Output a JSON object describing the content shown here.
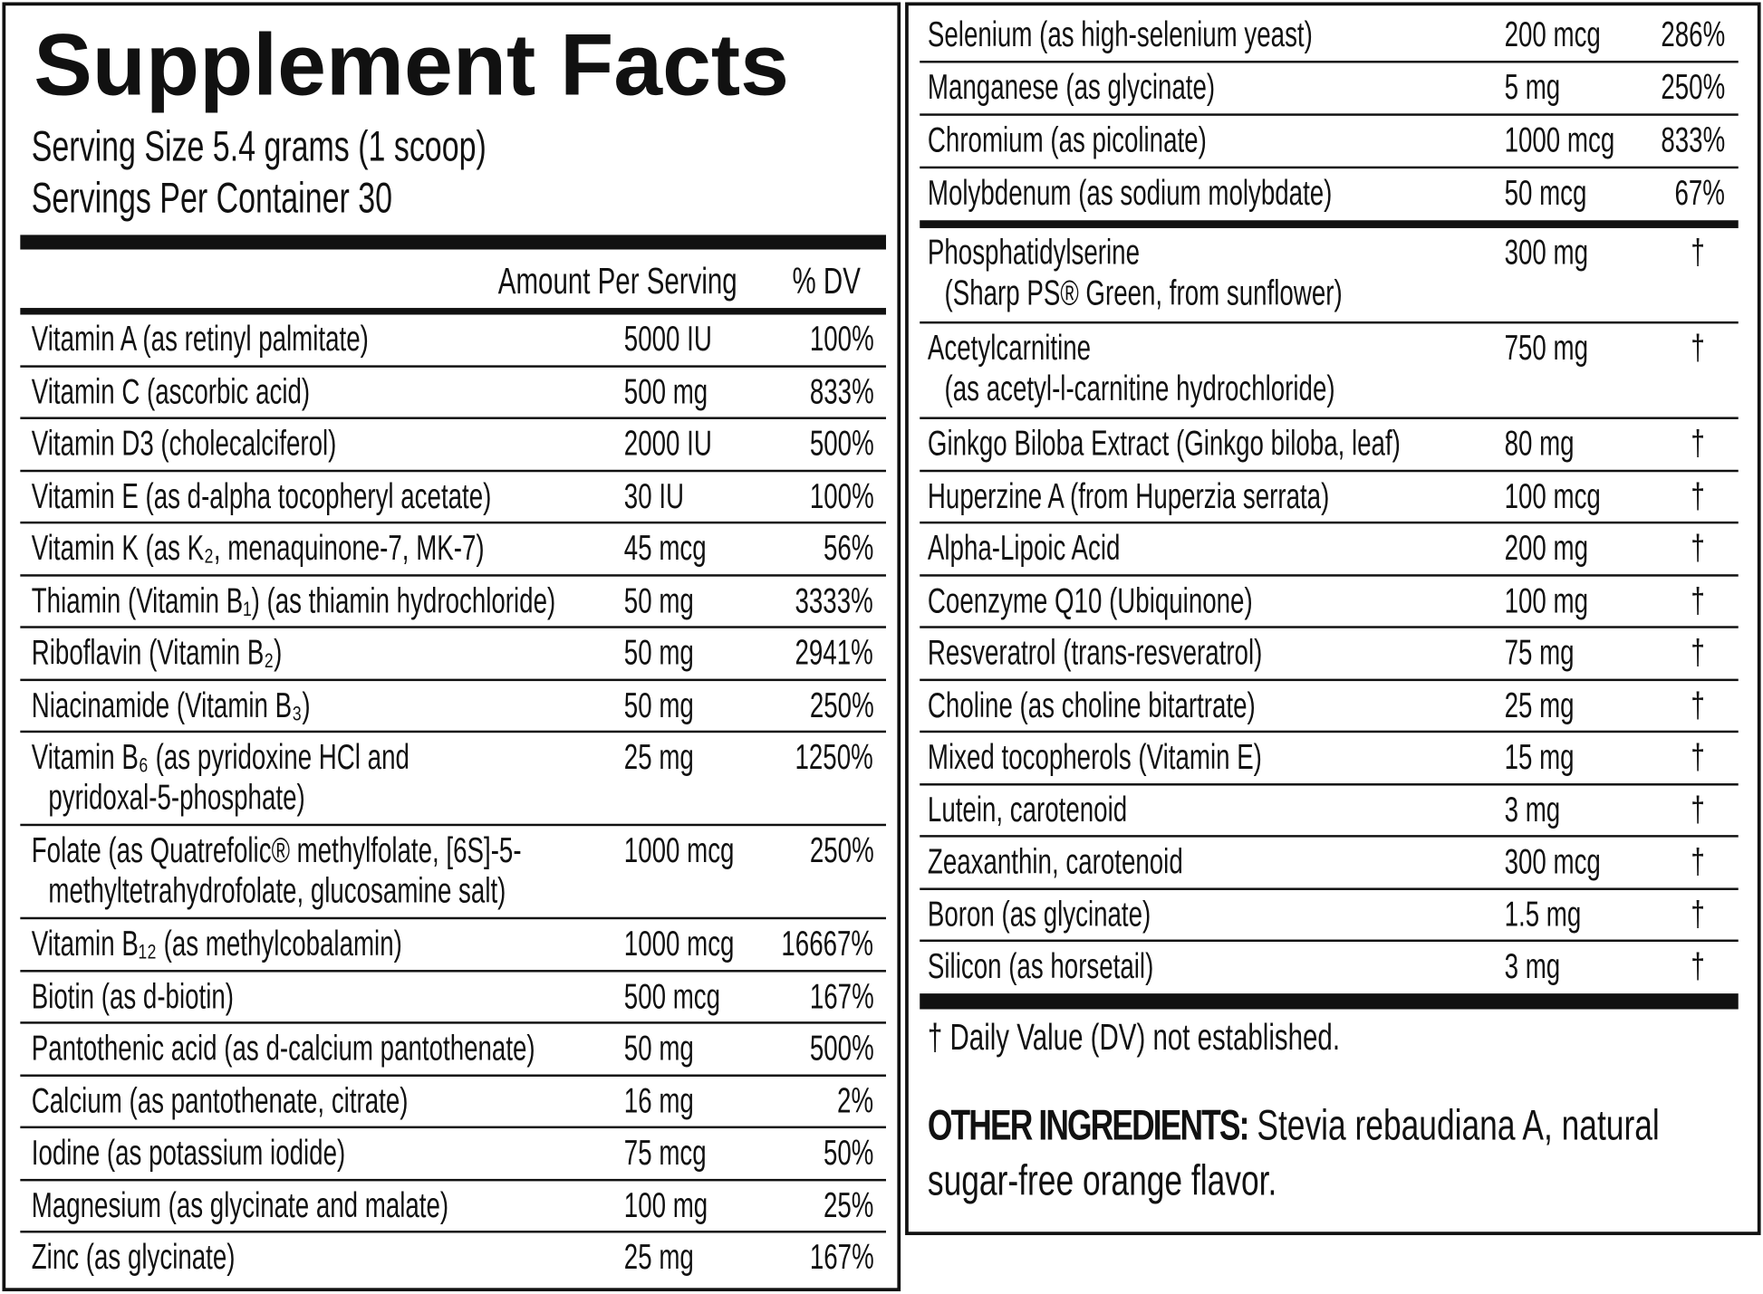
{
  "title": "Supplement Facts",
  "serving_size": "Serving Size 5.4 grams (1 scoop)",
  "servings_per_container": "Servings Per Container 30",
  "header": {
    "amount": "Amount Per Serving",
    "dv": "% DV"
  },
  "left_rows": [
    {
      "name": "Vitamin A (as retinyl palmitate)",
      "amount": "5000 IU",
      "dv": "100%"
    },
    {
      "name": "Vitamin C (ascorbic acid)",
      "amount": "500 mg",
      "dv": "833%"
    },
    {
      "name": "Vitamin D3 (cholecalciferol)",
      "amount": "2000 IU",
      "dv": "500%"
    },
    {
      "name": "Vitamin E (as d-alpha tocopheryl acetate)",
      "amount": "30 IU",
      "dv": "100%"
    },
    {
      "name": "Vitamin K (as K₂, menaquinone-7, MK-7)",
      "amount": "45 mcg",
      "dv": "56%"
    },
    {
      "name": "Thiamin (Vitamin B₁) (as thiamin hydrochloride)",
      "amount": "50 mg",
      "dv": "3333%"
    },
    {
      "name": "Riboflavin (Vitamin B₂)",
      "amount": "50 mg",
      "dv": "2941%"
    },
    {
      "name": "Niacinamide (Vitamin B₃)",
      "amount": "50 mg",
      "dv": "250%"
    },
    {
      "name": "Vitamin B₆ (as pyridoxine HCl and",
      "sub": "pyridoxal-5-phosphate)",
      "amount": "25 mg",
      "dv": "1250%"
    },
    {
      "name": "Folate (as Quatrefolic® methylfolate, [6S]-5-",
      "sub": "methyltetrahydrofolate, glucosamine salt)",
      "amount": "1000 mcg",
      "dv": "250%"
    },
    {
      "name": "Vitamin B₁₂ (as methylcobalamin)",
      "amount": "1000 mcg",
      "dv": "16667%"
    },
    {
      "name": "Biotin (as d-biotin)",
      "amount": "500 mcg",
      "dv": "167%"
    },
    {
      "name": "Pantothenic acid (as d-calcium pantothenate)",
      "amount": "50 mg",
      "dv": "500%"
    },
    {
      "name": "Calcium (as pantothenate, citrate)",
      "amount": "16 mg",
      "dv": "2%"
    },
    {
      "name": "Iodine (as potassium iodide)",
      "amount": "75 mcg",
      "dv": "50%"
    },
    {
      "name": "Magnesium (as glycinate and malate)",
      "amount": "100 mg",
      "dv": "25%"
    },
    {
      "name": "Zinc (as glycinate)",
      "amount": "25 mg",
      "dv": "167%"
    }
  ],
  "right_rows_top": [
    {
      "name": "Selenium (as high-selenium yeast)",
      "amount": "200 mcg",
      "dv": "286%"
    },
    {
      "name": "Manganese (as glycinate)",
      "amount": "5 mg",
      "dv": "250%"
    },
    {
      "name": "Chromium (as picolinate)",
      "amount": "1000 mcg",
      "dv": "833%"
    },
    {
      "name": "Molybdenum (as sodium molybdate)",
      "amount": "50 mcg",
      "dv": "67%"
    }
  ],
  "right_rows_bottom": [
    {
      "name": "Phosphatidylserine",
      "sub": "(Sharp PS® Green, from sunflower)",
      "amount": "300 mg",
      "dv": "†"
    },
    {
      "name": "Acetylcarnitine",
      "sub": "(as acetyl-l-carnitine hydrochloride)",
      "amount": "750 mg",
      "dv": "†"
    },
    {
      "name": "Ginkgo Biloba Extract (Ginkgo biloba, leaf)",
      "amount": "80 mg",
      "dv": "†"
    },
    {
      "name": "Huperzine A (from Huperzia serrata)",
      "amount": "100 mcg",
      "dv": "†"
    },
    {
      "name": "Alpha-Lipoic Acid",
      "amount": "200 mg",
      "dv": "†"
    },
    {
      "name": "Coenzyme Q10 (Ubiquinone)",
      "amount": "100 mg",
      "dv": "†"
    },
    {
      "name": "Resveratrol (trans-resveratrol)",
      "amount": "75 mg",
      "dv": "†"
    },
    {
      "name": "Choline (as choline bitartrate)",
      "amount": "25 mg",
      "dv": "†"
    },
    {
      "name": "Mixed tocopherols (Vitamin E)",
      "amount": "15 mg",
      "dv": "†"
    },
    {
      "name": "Lutein, carotenoid",
      "amount": "3 mg",
      "dv": "†"
    },
    {
      "name": "Zeaxanthin, carotenoid",
      "amount": "300 mcg",
      "dv": "†"
    },
    {
      "name": "Boron (as glycinate)",
      "amount": "1.5 mg",
      "dv": "†"
    },
    {
      "name": "Silicon (as horsetail)",
      "amount": "3 mg",
      "dv": "†"
    }
  ],
  "footnote": "† Daily Value (DV) not established.",
  "other_ingredients": {
    "label": "OTHER INGREDIENTS:",
    "text": "Stevia rebaudiana A, natural sugar-free orange flavor."
  }
}
